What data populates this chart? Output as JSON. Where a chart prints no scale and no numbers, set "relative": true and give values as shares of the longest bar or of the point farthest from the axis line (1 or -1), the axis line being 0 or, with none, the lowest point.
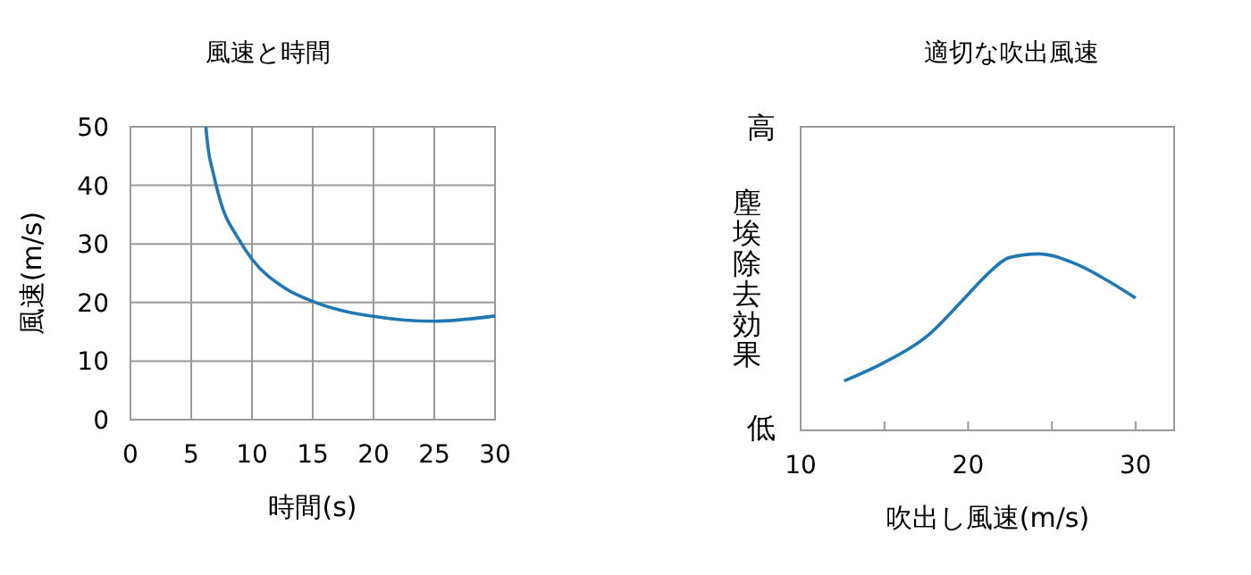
{
  "chart_data": [
    {
      "type": "line",
      "title": "風速と時間",
      "xlabel": "時間(s)",
      "ylabel": "風速(m/s)",
      "xlim": [
        0,
        30
      ],
      "ylim": [
        0,
        50
      ],
      "xticks": [
        0,
        5,
        10,
        15,
        20,
        25,
        30
      ],
      "yticks": [
        0,
        10,
        20,
        30,
        40,
        50
      ],
      "grid": true,
      "series": [
        {
          "color": "#1f77b4",
          "x": [
            6.2,
            6.4,
            6.8,
            7.6,
            8.8,
            10,
            12.75,
            15.1,
            20.1,
            25,
            30
          ],
          "values": [
            50,
            46.2,
            42.2,
            36,
            31.2,
            27.4,
            22.4,
            20.1,
            17.6,
            16.8,
            17.7
          ]
        }
      ]
    },
    {
      "type": "line",
      "title": "適切な吹出風速",
      "xlabel": "吹出し風速(m/s)",
      "ylabel": "塵埃除去効果",
      "relative": true,
      "xlim": [
        10,
        32.3
      ],
      "xticks": [
        10,
        {
          "value": 15,
          "label": null
        },
        20,
        {
          "value": 25,
          "label": null
        },
        30
      ],
      "annotations": [
        "高",
        "低"
      ],
      "series": [
        {
          "color": "#1f77b4",
          "x": [
            12.6,
            14.9,
            17.5,
            19.8,
            21.1,
            22.5,
            24.2,
            26.5,
            28.3,
            30
          ],
          "values": [
            0.28,
            0.38,
            0.53,
            0.75,
            0.88,
            0.98,
            1,
            0.94,
            0.85,
            0.75
          ]
        }
      ]
    }
  ]
}
